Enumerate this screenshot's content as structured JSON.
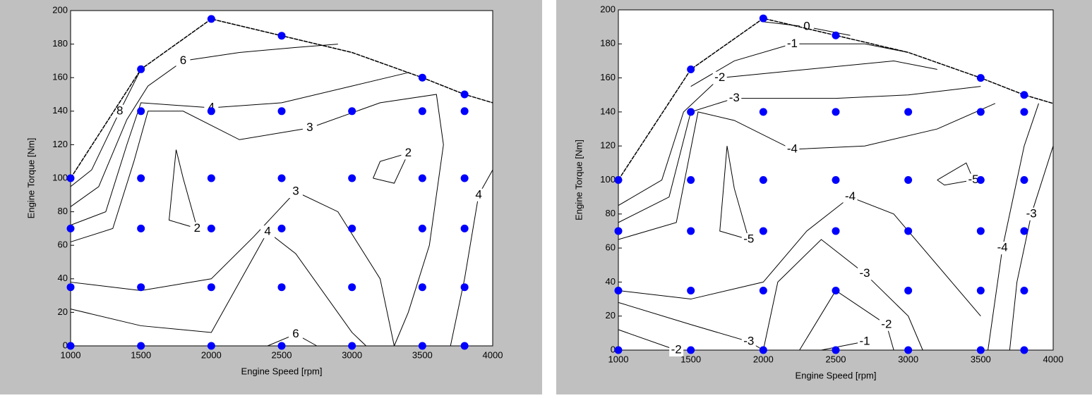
{
  "chart_data": [
    {
      "type": "contour",
      "xlabel": "Engine Speed [rpm]",
      "ylabel": "Engine Torque [Nm]",
      "xlim": [
        1000,
        4000
      ],
      "xticks": [
        1000,
        1500,
        2000,
        2500,
        3000,
        3500,
        4000
      ],
      "ylim": [
        0,
        200
      ],
      "yticks": [
        0,
        20,
        40,
        60,
        80,
        100,
        120,
        140,
        160,
        180,
        200
      ],
      "line_color": "#000000",
      "envelope": {
        "x": [
          1000,
          1500,
          2000,
          2500,
          3000,
          3500,
          3800,
          4000
        ],
        "y": [
          100,
          165,
          195,
          185,
          175,
          160,
          150,
          145
        ]
      },
      "series": [
        {
          "color": "#0000ff",
          "x": [
            1000,
            1000,
            1000,
            1000,
            1500,
            1500,
            1500,
            1500,
            1500,
            1500,
            2000,
            2000,
            2000,
            2000,
            2000,
            2000,
            2500,
            2500,
            2500,
            2500,
            2500,
            2500,
            3000,
            3000,
            3000,
            3000,
            3000,
            3500,
            3500,
            3500,
            3500,
            3500,
            3500,
            3800,
            3800,
            3800,
            3800,
            3800,
            3800
          ],
          "y": [
            0,
            35,
            70,
            100,
            0,
            35,
            70,
            100,
            140,
            165,
            0,
            35,
            70,
            100,
            140,
            195,
            0,
            35,
            70,
            100,
            140,
            185,
            0,
            35,
            70,
            100,
            140,
            0,
            35,
            70,
            100,
            140,
            160,
            0,
            35,
            70,
            100,
            140,
            150
          ]
        }
      ],
      "contours": [
        {
          "level": 8,
          "x": [
            1000,
            1150,
            1350,
            1500
          ],
          "y": [
            95,
            105,
            140,
            165
          ]
        },
        {
          "level": 6,
          "x": [
            1000,
            1200,
            1400,
            1550,
            1800,
            2200,
            2600,
            2900
          ],
          "y": [
            83,
            95,
            135,
            155,
            170,
            175,
            178,
            180
          ]
        },
        {
          "level": 4,
          "x": [
            1000,
            1250,
            1400,
            1500,
            2000,
            2500,
            3000,
            3400
          ],
          "y": [
            72,
            80,
            120,
            145,
            142,
            145,
            155,
            163
          ]
        },
        {
          "level": 3,
          "x": [
            1000,
            1300,
            1450,
            1550,
            1800,
            2200,
            2700,
            3200,
            3600,
            3650,
            3550,
            3400,
            3300
          ],
          "y": [
            62,
            70,
            110,
            140,
            140,
            123,
            130,
            145,
            150,
            120,
            60,
            20,
            0
          ]
        },
        {
          "level": 2,
          "x": [
            1750,
            1800,
            1900,
            1700,
            1750
          ],
          "y": [
            117,
            100,
            70,
            75,
            117
          ]
        },
        {
          "level": 2,
          "x": [
            3150,
            3300,
            3400,
            3200,
            3150
          ],
          "y": [
            100,
            97,
            115,
            110,
            100
          ]
        },
        {
          "level": 3,
          "x": [
            1000,
            1500,
            2000,
            2300,
            2600,
            2900,
            3200,
            3300
          ],
          "y": [
            38,
            33,
            40,
            65,
            92,
            80,
            40,
            0
          ]
        },
        {
          "level": 4,
          "x": [
            1000,
            1500,
            2000,
            2400,
            2600,
            3000,
            3100
          ],
          "y": [
            22,
            12,
            8,
            68,
            55,
            8,
            0
          ]
        },
        {
          "level": 6,
          "x": [
            2400,
            2600,
            2750
          ],
          "y": [
            0,
            7,
            0
          ]
        },
        {
          "level": 4,
          "x": [
            3700,
            3800,
            3900,
            4000
          ],
          "y": [
            0,
            40,
            90,
            105
          ]
        }
      ]
    },
    {
      "type": "contour",
      "xlabel": "Engine Speed [rpm]",
      "ylabel": "Engine Torque [Nm]",
      "xlim": [
        1000,
        4000
      ],
      "xticks": [
        1000,
        1500,
        2000,
        2500,
        3000,
        3500,
        4000
      ],
      "ylim": [
        0,
        200
      ],
      "yticks": [
        0,
        20,
        40,
        60,
        80,
        100,
        120,
        140,
        160,
        180,
        200
      ],
      "line_color": "#000000",
      "envelope": {
        "x": [
          1000,
          1500,
          2000,
          2500,
          3000,
          3500,
          3800,
          4000
        ],
        "y": [
          100,
          165,
          195,
          185,
          175,
          160,
          150,
          145
        ]
      },
      "series": [
        {
          "color": "#0000ff",
          "x": [
            1000,
            1000,
            1000,
            1000,
            1500,
            1500,
            1500,
            1500,
            1500,
            1500,
            2000,
            2000,
            2000,
            2000,
            2000,
            2000,
            2500,
            2500,
            2500,
            2500,
            2500,
            2500,
            3000,
            3000,
            3000,
            3000,
            3000,
            3500,
            3500,
            3500,
            3500,
            3500,
            3500,
            3800,
            3800,
            3800,
            3800,
            3800,
            3800
          ],
          "y": [
            0,
            35,
            70,
            100,
            0,
            35,
            70,
            100,
            140,
            165,
            0,
            35,
            70,
            100,
            140,
            195,
            0,
            35,
            70,
            100,
            140,
            185,
            0,
            35,
            70,
            100,
            140,
            0,
            35,
            70,
            100,
            140,
            160,
            0,
            35,
            70,
            100,
            140,
            150
          ]
        }
      ],
      "contours": [
        {
          "level": 0,
          "x": [
            2000,
            2300,
            2600
          ],
          "y": [
            193,
            190,
            185
          ]
        },
        {
          "level": -1,
          "x": [
            1500,
            1800,
            2200,
            2700,
            3000
          ],
          "y": [
            155,
            170,
            180,
            180,
            175
          ]
        },
        {
          "level": -2,
          "x": [
            1000,
            1300,
            1450,
            1700,
            2300,
            2900,
            3200
          ],
          "y": [
            85,
            100,
            140,
            160,
            165,
            170,
            165
          ]
        },
        {
          "level": -3,
          "x": [
            1000,
            1350,
            1500,
            1800,
            2500,
            3000,
            3500
          ],
          "y": [
            75,
            90,
            140,
            148,
            148,
            150,
            155
          ]
        },
        {
          "level": -4,
          "x": [
            1000,
            1400,
            1550,
            1800,
            2200,
            2700,
            3200,
            3600
          ],
          "y": [
            65,
            75,
            140,
            135,
            118,
            120,
            130,
            145
          ]
        },
        {
          "level": -4,
          "x": [
            3900,
            3800,
            3650,
            3550
          ],
          "y": [
            145,
            120,
            60,
            0
          ]
        },
        {
          "level": -5,
          "x": [
            1750,
            1800,
            1900,
            1700,
            1750
          ],
          "y": [
            120,
            95,
            65,
            70,
            120
          ]
        },
        {
          "level": -5,
          "x": [
            3200,
            3400,
            3450,
            3250,
            3200
          ],
          "y": [
            100,
            110,
            100,
            97,
            100
          ]
        },
        {
          "level": -4,
          "x": [
            1000,
            1500,
            2000,
            2300,
            2600,
            2900,
            3300,
            3500
          ],
          "y": [
            35,
            30,
            40,
            70,
            90,
            80,
            40,
            20
          ]
        },
        {
          "level": -3,
          "x": [
            1000,
            1500,
            1900,
            2000
          ],
          "y": [
            28,
            15,
            5,
            0
          ]
        },
        {
          "level": -3,
          "x": [
            2000,
            2100,
            2400,
            2700,
            3000,
            3100
          ],
          "y": [
            0,
            40,
            65,
            45,
            20,
            0
          ]
        },
        {
          "level": -2,
          "x": [
            1000,
            1400
          ],
          "y": [
            12,
            0
          ]
        },
        {
          "level": -2,
          "x": [
            2250,
            2500,
            2850,
            2900
          ],
          "y": [
            0,
            35,
            15,
            0
          ]
        },
        {
          "level": -1,
          "x": [
            2400,
            2700
          ],
          "y": [
            0,
            5
          ]
        },
        {
          "level": -3,
          "x": [
            3700,
            3750,
            3850,
            4000
          ],
          "y": [
            0,
            40,
            80,
            120
          ]
        }
      ]
    }
  ]
}
